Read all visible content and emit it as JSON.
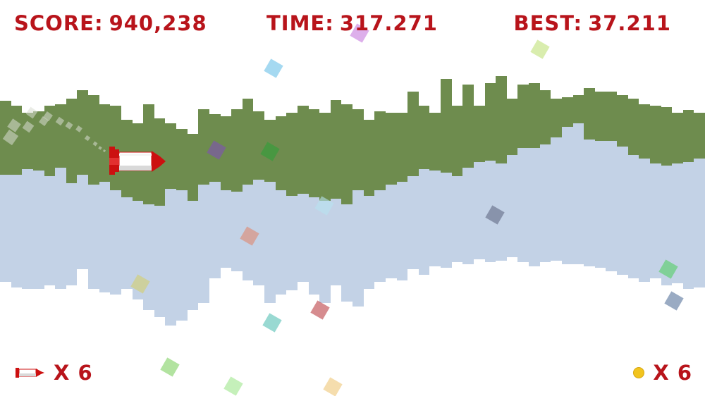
{
  "hud": {
    "score_label": "SCORE:",
    "score_value": "940,238",
    "time_label": "TIME:",
    "time_value": "317.271",
    "best_label": "BEST:",
    "best_value": "37.211",
    "lives_text": "X 6",
    "coins_text": "X 6"
  },
  "colors": {
    "hud_text": "#b8141b",
    "background": "#ffffff",
    "front_hills": "#6e8c4e",
    "back_hills": "#c3d2e6",
    "rocket_body": "#ffffff",
    "rocket_trim": "#cc1010",
    "coin": "#f2c41e"
  },
  "icons": {
    "player": "rocket-icon",
    "lives": "rocket-life-icon",
    "coins": "coin-icon"
  }
}
